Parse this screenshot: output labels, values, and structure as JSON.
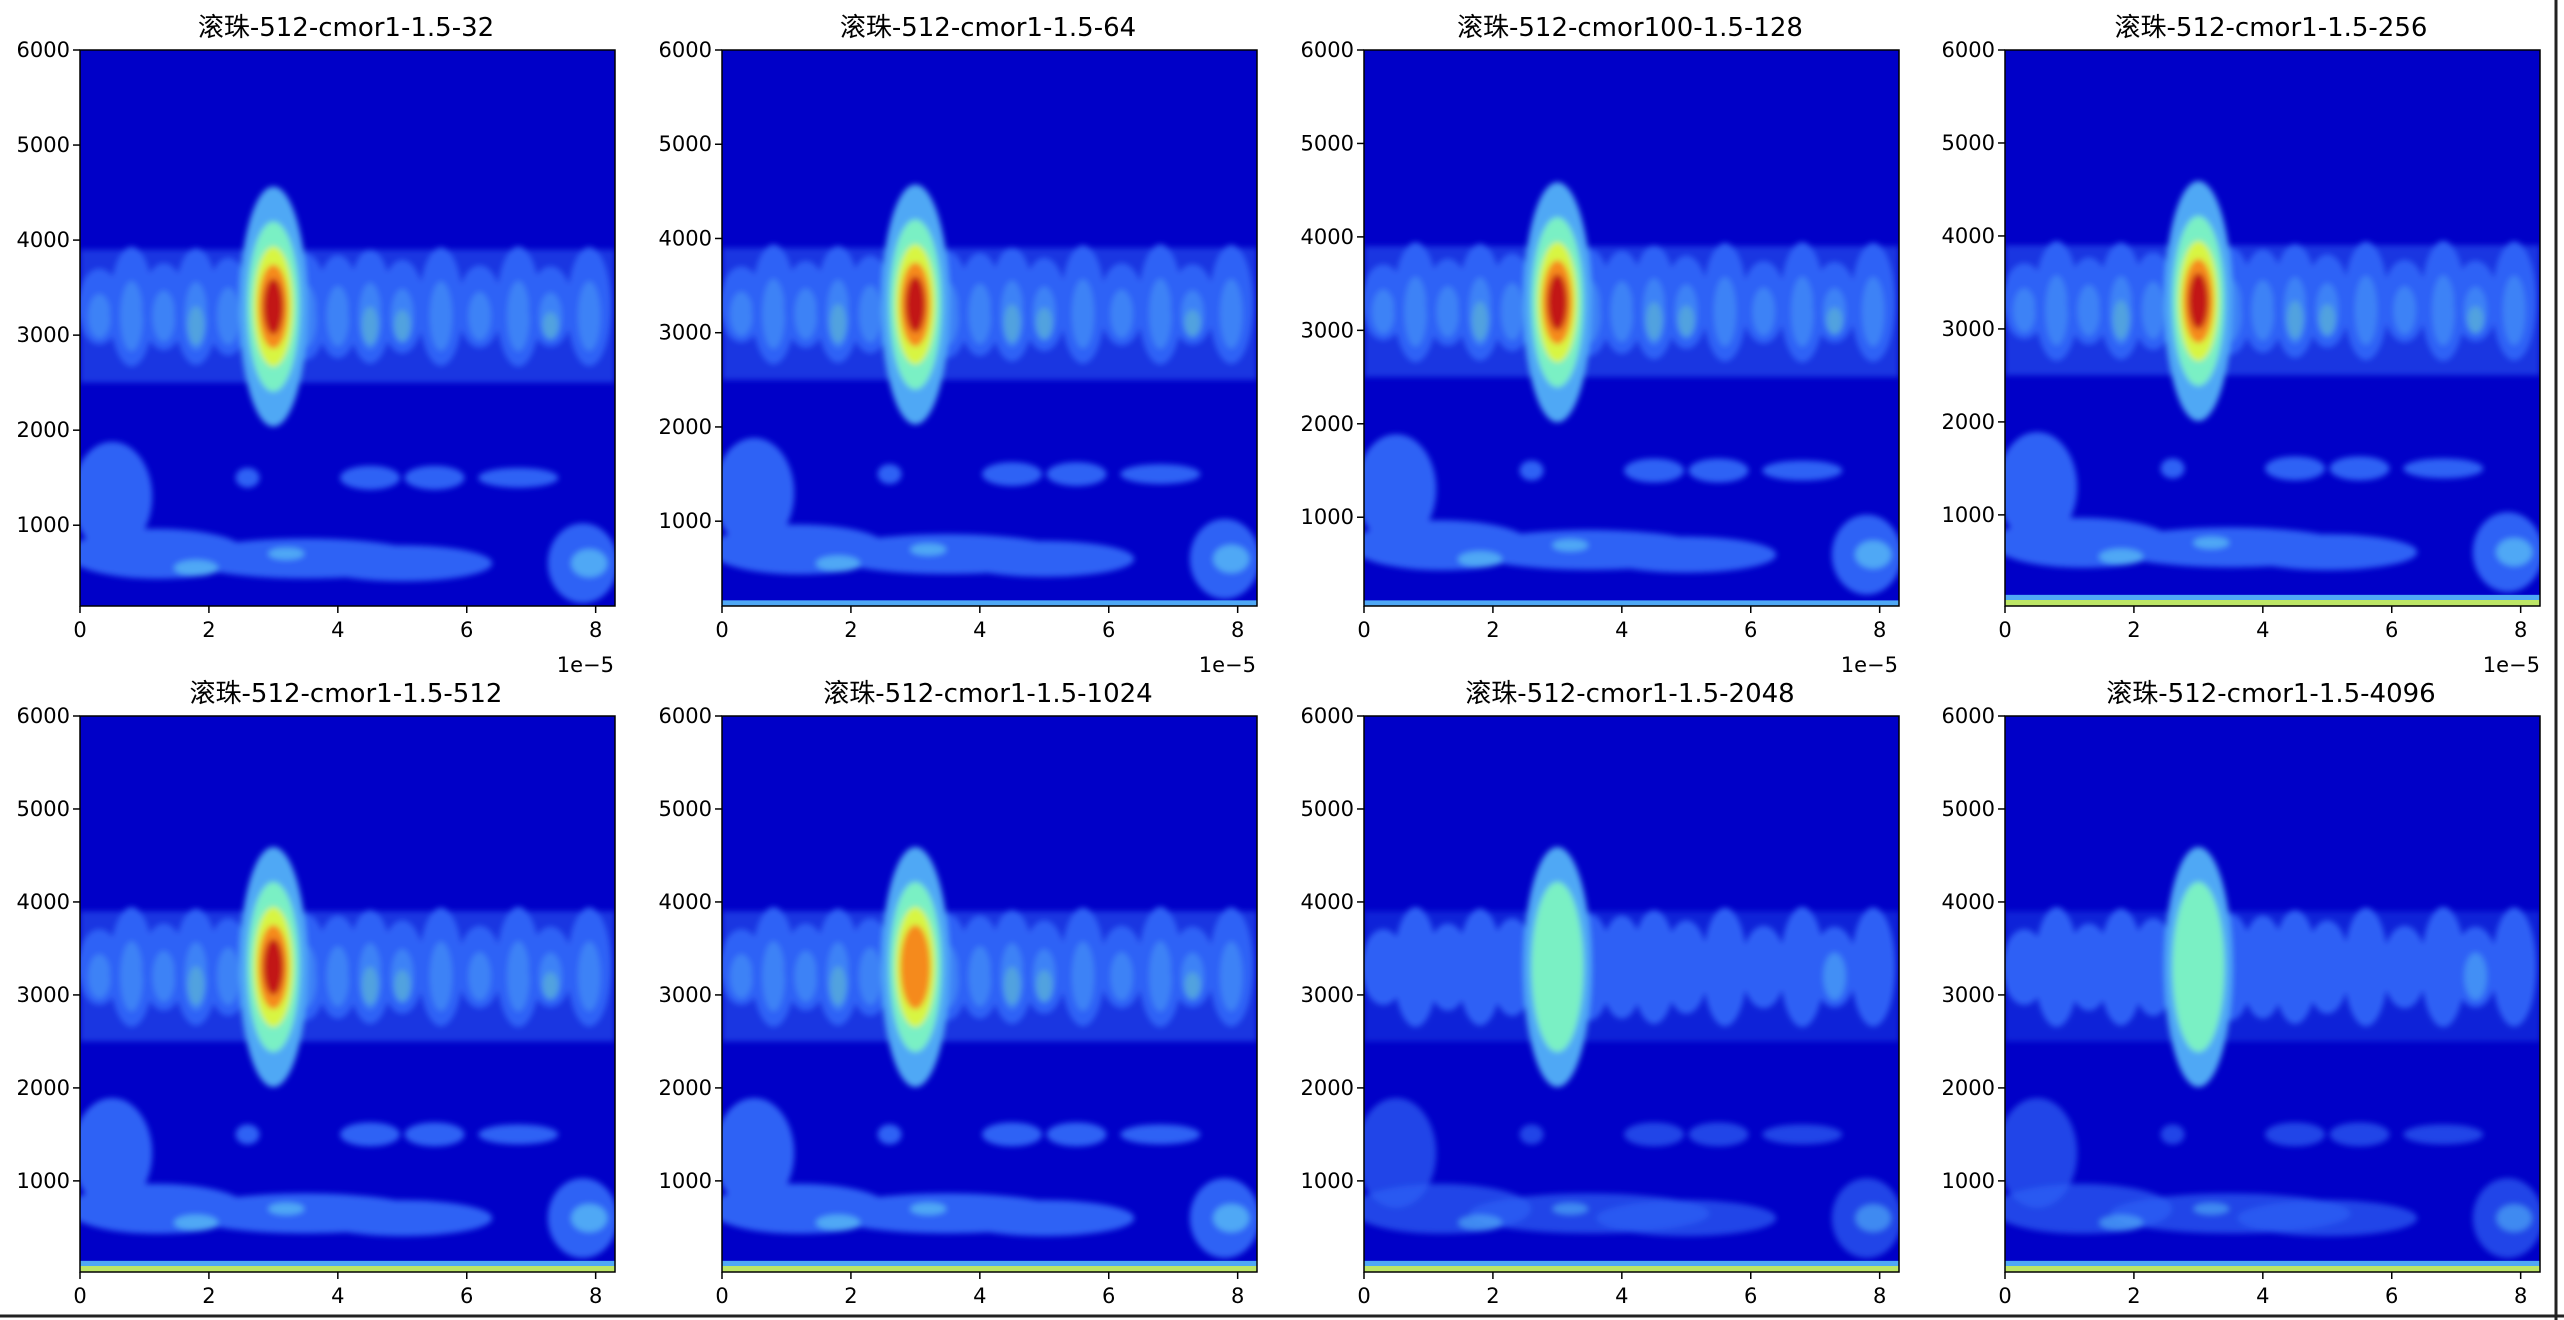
{
  "colors": {
    "background": "#0000c8",
    "levels": [
      "#0b1fd6",
      "#2f62f5",
      "#4fa8f5",
      "#7af0c4",
      "#d8f542",
      "#f58a1c",
      "#c21616"
    ],
    "frame_edge": "#000000"
  },
  "chart_data": [
    {
      "type": "heatmap",
      "title": "滚珠-512-cmor1-1.5-32",
      "xticks": [
        "0",
        "2",
        "4",
        "6",
        "8"
      ],
      "yticks": [
        "1000",
        "2000",
        "3000",
        "4000",
        "5000",
        "6000"
      ],
      "x_offset": "1e−5",
      "xlim": [
        0,
        8.3
      ],
      "ylim": [
        150,
        6000
      ],
      "peak": {
        "x": 3.0,
        "y": 3300,
        "level": 7
      },
      "low_noise_band": 0,
      "grid": false
    },
    {
      "type": "heatmap",
      "title": "滚珠-512-cmor1-1.5-64",
      "xticks": [
        "0",
        "2",
        "4",
        "6",
        "8"
      ],
      "yticks": [
        "1000",
        "2000",
        "3000",
        "4000",
        "5000",
        "6000"
      ],
      "x_offset": "1e−5",
      "xlim": [
        0,
        8.3
      ],
      "ylim": [
        100,
        6000
      ],
      "peak": {
        "x": 3.0,
        "y": 3300,
        "level": 7
      },
      "low_noise_band": 1,
      "grid": false
    },
    {
      "type": "heatmap",
      "title": "滚珠-512-cmor100-1.5-128",
      "xticks": [
        "0",
        "2",
        "4",
        "6",
        "8"
      ],
      "yticks": [
        "1000",
        "2000",
        "3000",
        "4000",
        "5000",
        "6000"
      ],
      "x_offset": "1e−5",
      "xlim": [
        0,
        8.3
      ],
      "ylim": [
        50,
        6000
      ],
      "peak": {
        "x": 3.0,
        "y": 3300,
        "level": 7
      },
      "low_noise_band": 1,
      "grid": false
    },
    {
      "type": "heatmap",
      "title": "滚珠-512-cmor1-1.5-256",
      "xticks": [
        "0",
        "2",
        "4",
        "6",
        "8"
      ],
      "yticks": [
        "1000",
        "2000",
        "3000",
        "4000",
        "5000",
        "6000"
      ],
      "x_offset": "1e−5",
      "xlim": [
        0,
        8.3
      ],
      "ylim": [
        20,
        6000
      ],
      "peak": {
        "x": 3.0,
        "y": 3300,
        "level": 7
      },
      "low_noise_band": 2,
      "grid": false
    },
    {
      "type": "heatmap",
      "title": "滚珠-512-cmor1-1.5-512",
      "xticks": [
        "0",
        "2",
        "4",
        "6",
        "8"
      ],
      "yticks": [
        "1000",
        "2000",
        "3000",
        "4000",
        "5000",
        "6000"
      ],
      "x_offset": "",
      "xlim": [
        0,
        8.3
      ],
      "ylim": [
        20,
        6000
      ],
      "peak": {
        "x": 3.0,
        "y": 3300,
        "level": 7
      },
      "low_noise_band": 2,
      "grid": false
    },
    {
      "type": "heatmap",
      "title": "滚珠-512-cmor1-1.5-1024",
      "xticks": [
        "0",
        "2",
        "4",
        "6",
        "8"
      ],
      "yticks": [
        "1000",
        "2000",
        "3000",
        "4000",
        "5000",
        "6000"
      ],
      "x_offset": "",
      "xlim": [
        0,
        8.3
      ],
      "ylim": [
        20,
        6000
      ],
      "peak": {
        "x": 3.0,
        "y": 3300,
        "level": 6
      },
      "low_noise_band": 2,
      "grid": false
    },
    {
      "type": "heatmap",
      "title": "滚珠-512-cmor1-1.5-2048",
      "xticks": [
        "0",
        "2",
        "4",
        "6",
        "8"
      ],
      "yticks": [
        "1000",
        "2000",
        "3000",
        "4000",
        "5000",
        "6000"
      ],
      "x_offset": "",
      "xlim": [
        0,
        8.3
      ],
      "ylim": [
        20,
        6000
      ],
      "peak": {
        "x": 3.0,
        "y": 3300,
        "level": 4
      },
      "low_noise_band": 2,
      "grid": false
    },
    {
      "type": "heatmap",
      "title": "滚珠-512-cmor1-1.5-4096",
      "xticks": [
        "0",
        "2",
        "4",
        "6",
        "8"
      ],
      "yticks": [
        "1000",
        "2000",
        "3000",
        "4000",
        "5000",
        "6000"
      ],
      "x_offset": "",
      "xlim": [
        0,
        8.3
      ],
      "ylim": [
        20,
        6000
      ],
      "peak": {
        "x": 3.0,
        "y": 3300,
        "level": 4
      },
      "low_noise_band": 2,
      "grid": false
    }
  ]
}
